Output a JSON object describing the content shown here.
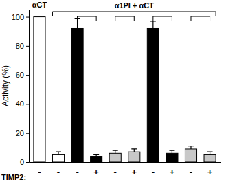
{
  "chart_data": {
    "type": "bar",
    "y_label": "Activity (%)",
    "categories": [
      "-",
      "-",
      "-",
      "+",
      "-",
      "+",
      "-",
      "+",
      "-",
      "+"
    ],
    "values": [
      100,
      5,
      92,
      4,
      6,
      7,
      92,
      6,
      9,
      5
    ],
    "errors": [
      null,
      2,
      7,
      1,
      2,
      2,
      5,
      2,
      2,
      2
    ],
    "colors": [
      "#ffffff",
      "#ffffff",
      "#000000",
      "#000000",
      "#c8c8c8",
      "#c8c8c8",
      "#000000",
      "#000000",
      "#c8c8c8",
      "#c8c8c8"
    ],
    "ylim": [
      0,
      105
    ],
    "yticks": [
      0,
      20,
      40,
      60,
      80,
      100
    ],
    "annotations": [
      {
        "text": "αCT"
      },
      {
        "text": "α1PI + αCT"
      },
      {
        "text": "TIMP2:"
      }
    ]
  }
}
